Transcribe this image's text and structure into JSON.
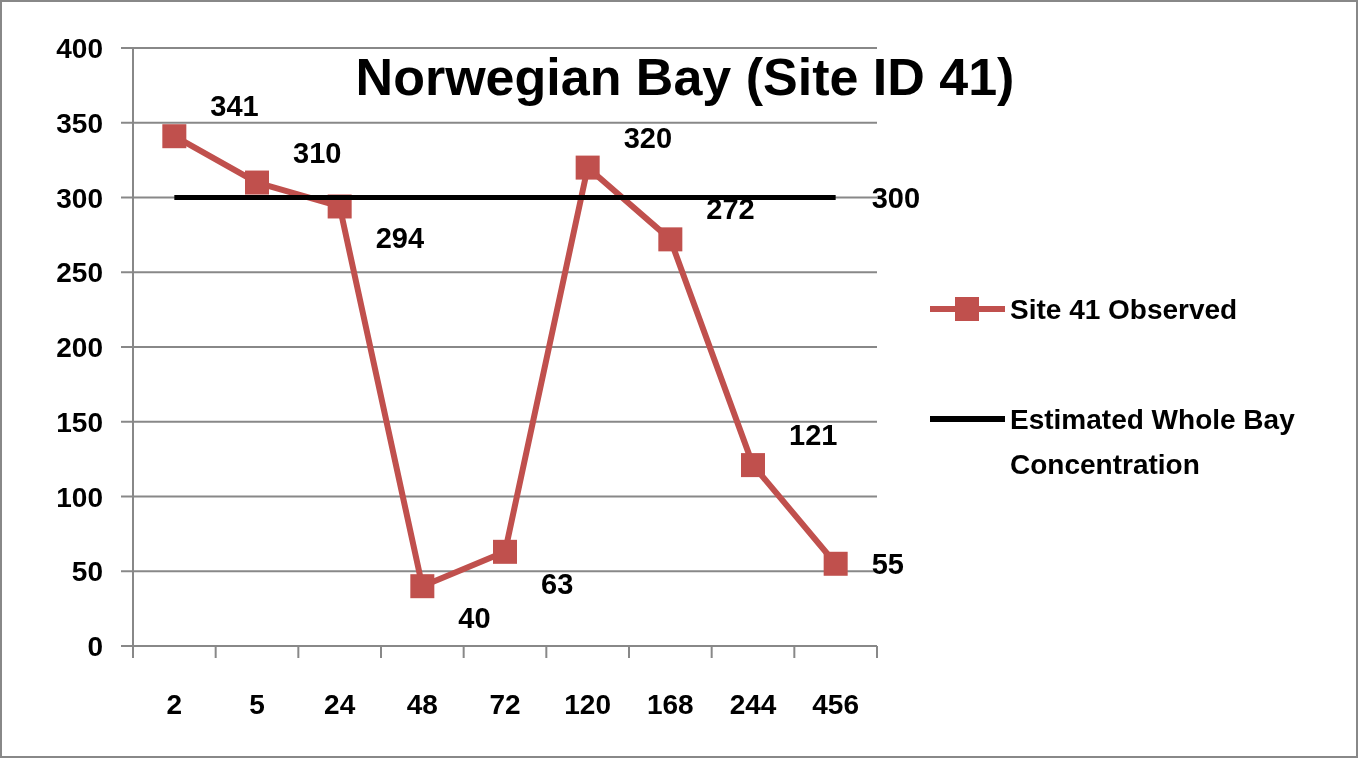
{
  "chart_data": {
    "type": "line",
    "title": "Norwegian Bay (Site ID 41)",
    "categories": [
      "2",
      "5",
      "24",
      "48",
      "72",
      "120",
      "168",
      "244",
      "456"
    ],
    "series": [
      {
        "name": "Site 41 Observed",
        "color": "#c0504d",
        "marker": "square",
        "values": [
          341,
          310,
          294,
          40,
          63,
          320,
          272,
          121,
          55
        ],
        "value_labels": [
          "341",
          "310",
          "294",
          "40",
          "63",
          "320",
          "272",
          "121",
          "55"
        ]
      },
      {
        "name": "Estimated Whole Bay Concentration",
        "color": "#000000",
        "marker": "none",
        "values": [
          300,
          300,
          300,
          300,
          300,
          300,
          300,
          300,
          300
        ],
        "value_labels": [
          null,
          null,
          null,
          null,
          null,
          null,
          null,
          null,
          "300"
        ]
      }
    ],
    "ylim": [
      0,
      400
    ],
    "yticks": [
      0,
      50,
      100,
      150,
      200,
      250,
      300,
      350,
      400
    ],
    "grid": "y",
    "legend": "right",
    "line_style": "solid"
  }
}
